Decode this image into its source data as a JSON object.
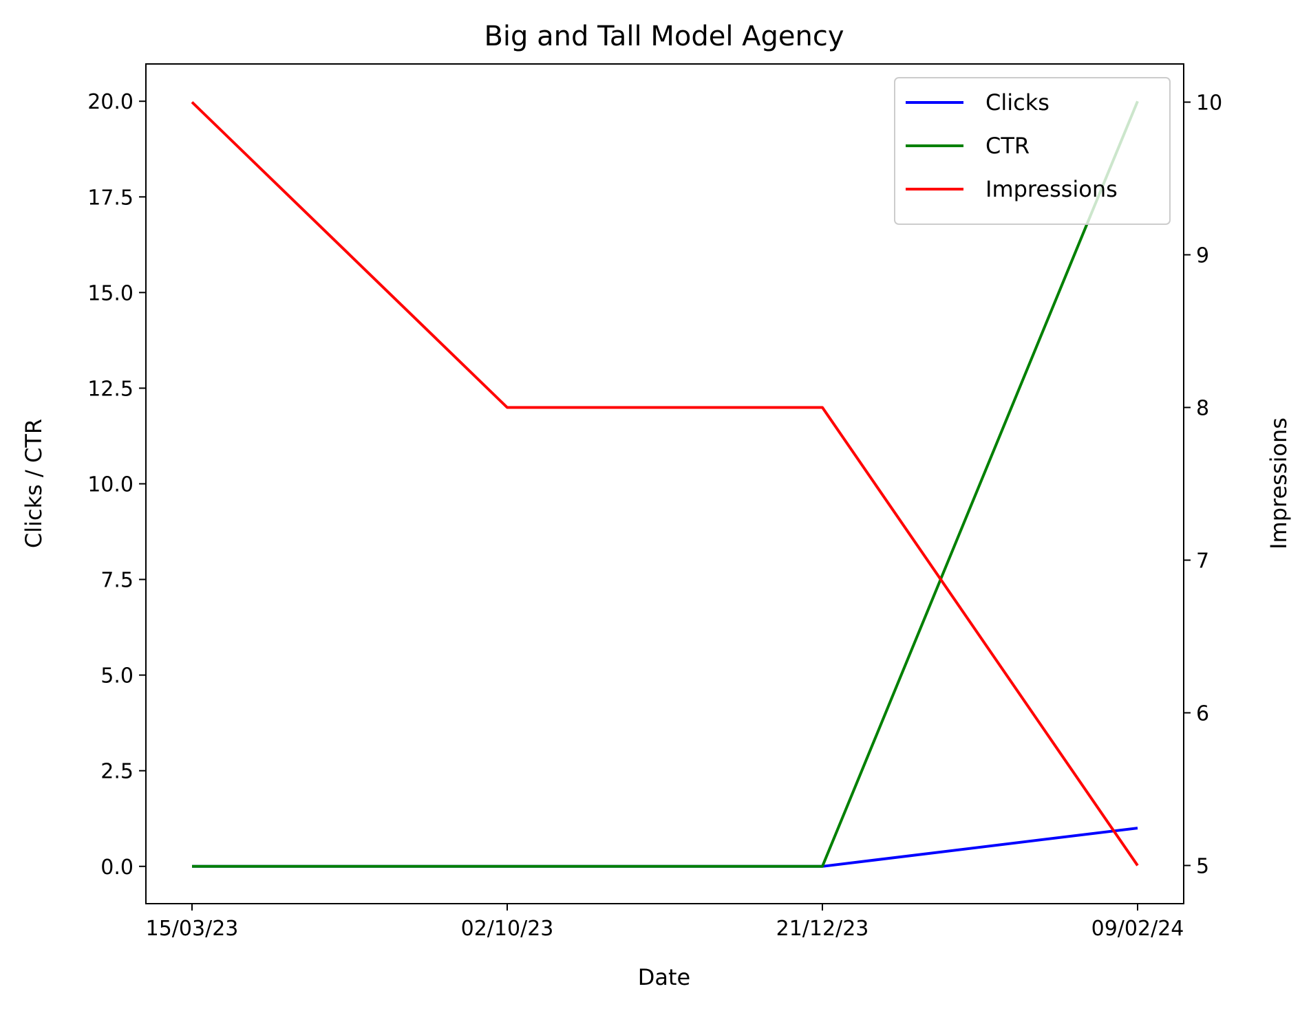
{
  "chart_data": {
    "type": "line",
    "title": "Big and Tall Model Agency",
    "xlabel": "Date",
    "ylabel_left": "Clicks / CTR",
    "ylabel_right": "Impressions",
    "categories": [
      "15/03/23",
      "02/10/23",
      "21/12/23",
      "09/02/24"
    ],
    "ylim_left": [
      -0.975,
      20.975
    ],
    "yticks_left": [
      "0.0",
      "2.5",
      "5.0",
      "7.5",
      "10.0",
      "12.5",
      "15.0",
      "17.5",
      "20.0"
    ],
    "ylim_right": [
      4.75,
      10.25
    ],
    "yticks_right": [
      "5",
      "6",
      "7",
      "8",
      "9",
      "10"
    ],
    "grid": false,
    "legend_position": "top-right",
    "series": [
      {
        "name": "Clicks",
        "axis": "left",
        "color": "#0000ff",
        "values": [
          0,
          0,
          0,
          1
        ]
      },
      {
        "name": "CTR",
        "axis": "left",
        "color": "#008000",
        "values": [
          0,
          0,
          0,
          20
        ]
      },
      {
        "name": "Impressions",
        "axis": "right",
        "color": "#ff0000",
        "values": [
          10,
          8,
          8,
          5
        ]
      }
    ]
  }
}
